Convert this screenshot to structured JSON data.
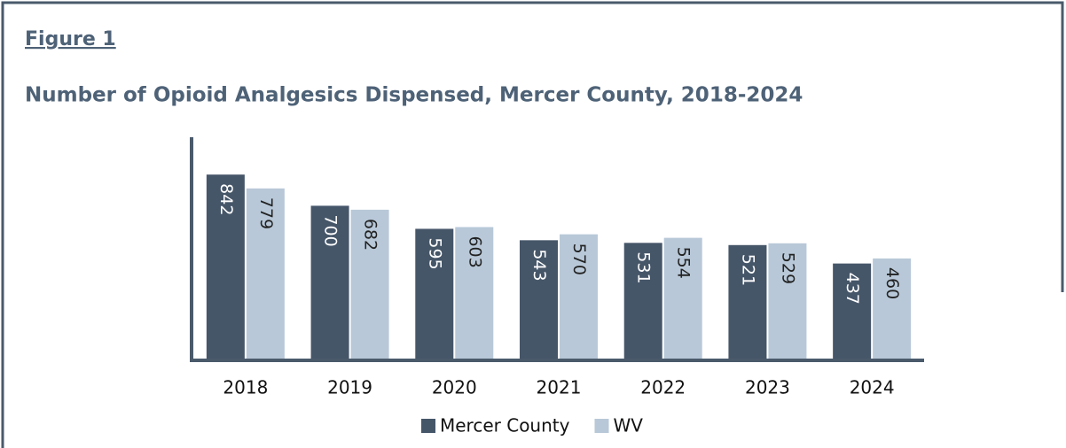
{
  "figure_label": "Figure 1",
  "chart_data": {
    "type": "bar",
    "title": "Number of Opioid Analgesics Dispensed, Mercer County, 2018-2024",
    "categories": [
      "2018",
      "2019",
      "2020",
      "2021",
      "2022",
      "2023",
      "2024"
    ],
    "series": [
      {
        "name": "Mercer County",
        "color": "#465669",
        "values": [
          842,
          700,
          595,
          543,
          531,
          521,
          437
        ]
      },
      {
        "name": "WV",
        "color": "#b8c8d8",
        "values": [
          779,
          682,
          603,
          570,
          554,
          529,
          460
        ]
      }
    ],
    "ylim": [
      0,
      1000
    ],
    "legend": "bottom"
  }
}
